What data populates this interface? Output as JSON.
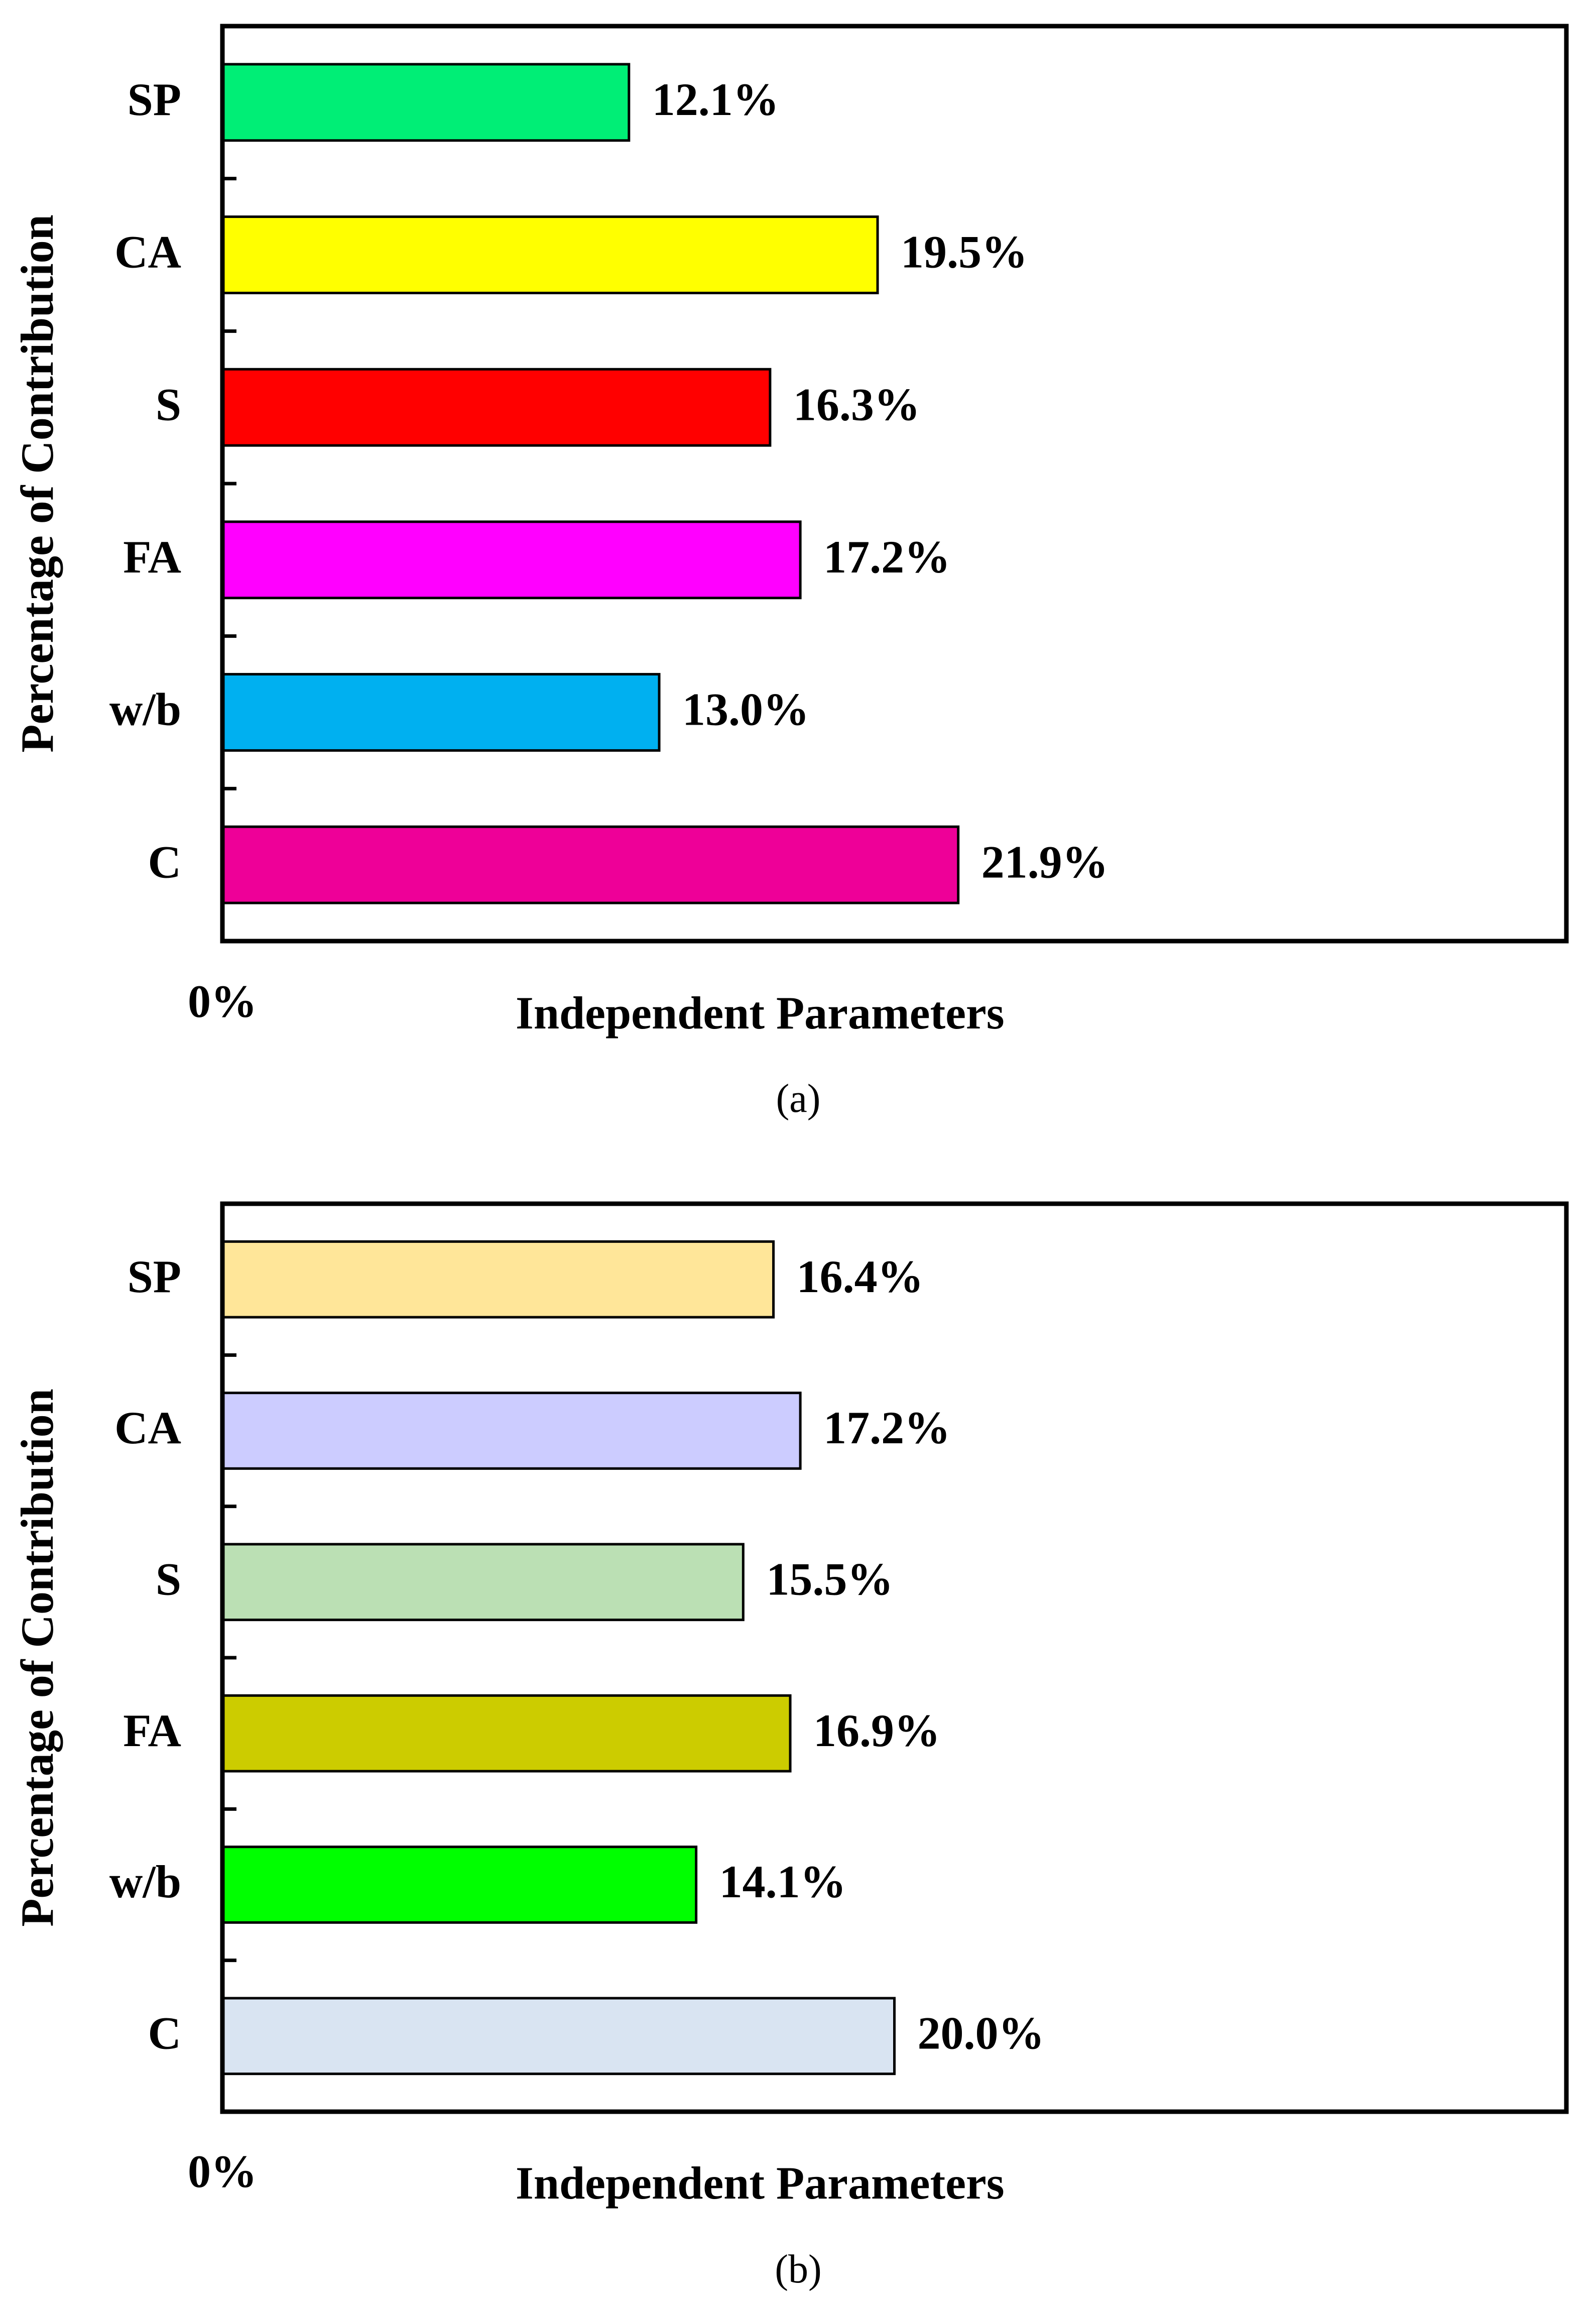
{
  "chart_data": [
    {
      "type": "bar",
      "orientation": "horizontal",
      "panel_label": "(a)",
      "categories": [
        "C",
        "w/b",
        "FA",
        "S",
        "CA",
        "SP"
      ],
      "values": [
        21.9,
        13.0,
        17.2,
        16.3,
        19.5,
        12.1
      ],
      "value_labels": [
        "21.9%",
        "13.0%",
        "17.2%",
        "16.3%",
        "19.5%",
        "12.1%"
      ],
      "colors": [
        "#EE0098",
        "#00B0F0",
        "#FF00FF",
        "#FF0000",
        "#FFFF00",
        "#00EE76"
      ],
      "xlim": [
        0,
        40
      ],
      "x_tick_label": "0%",
      "xlabel": "Independent Parameters",
      "ylabel": "Percentage of Contribution",
      "grid": false
    },
    {
      "type": "bar",
      "orientation": "horizontal",
      "panel_label": "(b)",
      "categories": [
        "C",
        "w/b",
        "FA",
        "S",
        "CA",
        "SP"
      ],
      "values": [
        20.0,
        14.1,
        16.9,
        15.5,
        17.2,
        16.4
      ],
      "value_labels": [
        "20.0%",
        "14.1%",
        "16.9%",
        "15.5%",
        "17.2%",
        "16.4%"
      ],
      "colors": [
        "#D9E4F2",
        "#00FF00",
        "#CCCC00",
        "#BBE0B4",
        "#CCCCFF",
        "#FFE699"
      ],
      "xlim": [
        0,
        40
      ],
      "x_tick_label": "0%",
      "xlabel": "Independent Parameters",
      "ylabel": "Percentage of Contribution",
      "grid": false
    }
  ]
}
